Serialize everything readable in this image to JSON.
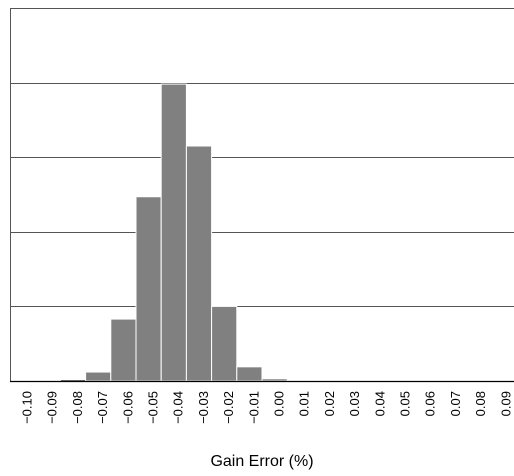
{
  "chart_data": {
    "type": "bar",
    "title": "",
    "xlabel": "Gain Error (%)",
    "ylabel": "",
    "x_tick_labels": [
      "−0.10",
      "−0.09",
      "−0.08",
      "−0.07",
      "−0.06",
      "−0.05",
      "−0.04",
      "−0.03",
      "−0.02",
      "−0.01",
      "0.00",
      "0.01",
      "0.02",
      "0.03",
      "0.04",
      "0.05",
      "0.06",
      "0.07",
      "0.08",
      "0.09"
    ],
    "bin_width": 0.01,
    "xlim": [
      -0.1,
      0.1
    ],
    "ylim": [
      0,
      5
    ],
    "y_gridlines": [
      1,
      2,
      3,
      4,
      5
    ],
    "y_tick_labels_shown": false,
    "grid": true,
    "bars": [
      {
        "x_start": -0.08,
        "value": 0.02,
        "color": "#000000"
      },
      {
        "x_start": -0.07,
        "value": 0.12,
        "color": "#808080"
      },
      {
        "x_start": -0.06,
        "value": 0.83,
        "color": "#808080"
      },
      {
        "x_start": -0.05,
        "value": 2.47,
        "color": "#808080"
      },
      {
        "x_start": -0.04,
        "value": 3.98,
        "color": "#808080"
      },
      {
        "x_start": -0.03,
        "value": 3.15,
        "color": "#808080"
      },
      {
        "x_start": -0.02,
        "value": 1.0,
        "color": "#808080"
      },
      {
        "x_start": -0.01,
        "value": 0.19,
        "color": "#808080"
      },
      {
        "x_start": 0.0,
        "value": 0.03,
        "color": "#808080"
      }
    ]
  }
}
